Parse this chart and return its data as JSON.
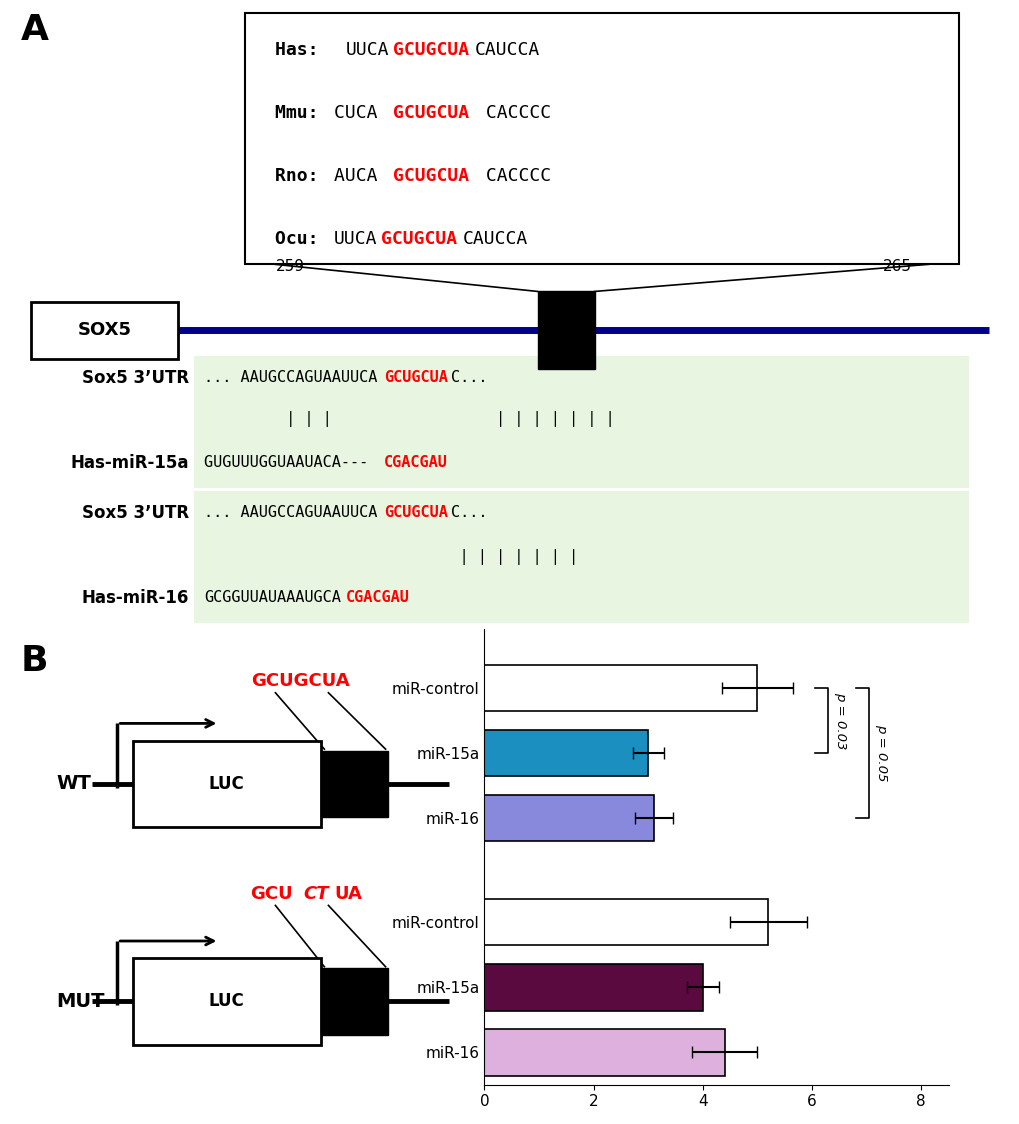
{
  "panel_A_label": "A",
  "panel_B_label": "B",
  "species_box": {
    "lines": [
      {
        "prefix": "Has:  ",
        "pre_text": "UUCA",
        "red_text": "GCUGCUA",
        "post_text": "CAUCCA"
      },
      {
        "prefix": "Mmu: ",
        "pre_text": "CUCA ",
        "red_text": "GCUGCUA",
        "post_text": " CACCCC"
      },
      {
        "prefix": "Rno: ",
        "pre_text": "AUCA ",
        "red_text": "GCUGCUA",
        "post_text": " CACCCC"
      },
      {
        "prefix": "Ocu: ",
        "pre_text": "UUCA",
        "red_text": "GCUGCUA",
        "post_text": "CAUCCA"
      }
    ]
  },
  "sox5_label": "SOX5",
  "pos_259": "259",
  "pos_265": "265",
  "binding_block1": {
    "label1": "Sox5 3’UTR",
    "seq1": "... AAUGCCAGUAAUUCA",
    "seq1_red": "GCUGCUA",
    "seq1_post": "C...",
    "pipes": "         | | |                  | | | | | | |",
    "label2": "Has-miR-15a",
    "seq2_black": "GUGUUUGGUAAUACA--- ",
    "seq2_red": "CGACGAU"
  },
  "binding_block2": {
    "label1": "Sox5 3’UTR",
    "seq1": "... AAUGCCAGUAAUUCA",
    "seq1_red": "GCUGCUA",
    "seq1_post": "C...",
    "pipes": "                            | | | | | | |",
    "label2": "Has-miR-16",
    "seq2_black": "GCGGUUAUAAAUGCA",
    "seq2_red": "CGACGAU"
  },
  "wt_label": "WT",
  "wt_red_text": "GCUGCUA",
  "mut_label": "MUT",
  "bars": {
    "labels": [
      "miR-control",
      "miR-15a",
      "miR-16",
      "miR-control",
      "miR-15a",
      "miR-16"
    ],
    "values": [
      5.0,
      3.0,
      3.1,
      5.2,
      4.0,
      4.4
    ],
    "errors": [
      0.65,
      0.28,
      0.35,
      0.7,
      0.3,
      0.6
    ],
    "colors": [
      "#ffffff",
      "#1a8fc0",
      "#8888dd",
      "#ffffff",
      "#5a0a3e",
      "#ddb0dd"
    ],
    "edgecolors": [
      "#000000",
      "#000000",
      "#000000",
      "#000000",
      "#000000",
      "#000000"
    ]
  },
  "xlim": [
    0,
    8
  ],
  "xticks": [
    0,
    2,
    4,
    6,
    8
  ],
  "p_val_1": "p = 0.03",
  "p_val_2": "p = 0.05",
  "background_color": "#ffffff"
}
